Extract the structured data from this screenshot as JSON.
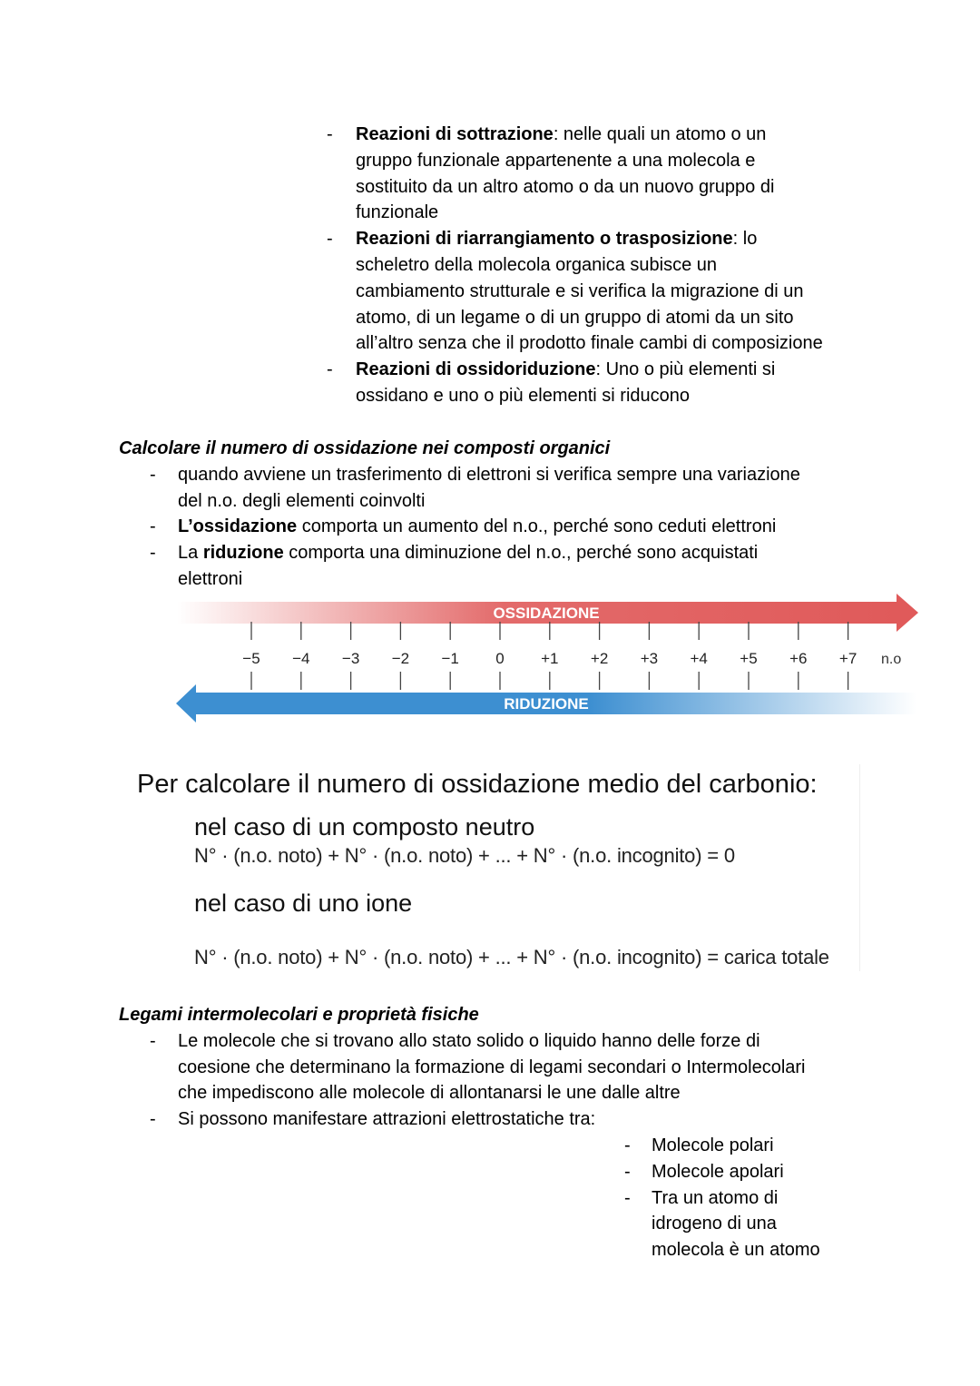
{
  "section1": {
    "items": [
      {
        "lines": [
          [
            [
              "Reazioni di sottrazione",
              1
            ],
            [
              ": nelle quali un atomo o un",
              0
            ]
          ],
          [
            [
              "gruppo funzionale appartenente a una molecola e",
              0
            ]
          ],
          [
            [
              "sostituito da un altro atomo o da un nuovo gruppo di",
              0
            ]
          ],
          [
            [
              "funzionale",
              0
            ]
          ]
        ]
      },
      {
        "lines": [
          [
            [
              "Reazioni di riarrangiamento o trasposizione",
              1
            ],
            [
              ": lo",
              0
            ]
          ],
          [
            [
              "scheletro della molecola organica subisce un",
              0
            ]
          ],
          [
            [
              "cambiamento strutturale e si verifica la migrazione di un",
              0
            ]
          ],
          [
            [
              "atomo, di un legame o di un gruppo di atomi da un sito",
              0
            ]
          ],
          [
            [
              "all’altro senza che il prodotto finale cambi di composizione",
              0
            ]
          ]
        ]
      },
      {
        "lines": [
          [
            [
              "Reazioni di ossidoriduzione",
              1
            ],
            [
              ": Uno o più elementi si",
              0
            ]
          ],
          [
            [
              "ossidano e uno o più elementi si riducono",
              0
            ]
          ]
        ]
      }
    ]
  },
  "section2": {
    "heading": "Calcolare il numero di ossidazione nei composti organici",
    "items": [
      {
        "lines": [
          [
            [
              "quando avviene un trasferimento di elettroni si verifica sempre una variazione",
              0
            ]
          ],
          [
            [
              "del n.o. degli elementi coinvolti",
              0
            ]
          ]
        ]
      },
      {
        "lines": [
          [
            [
              "L’ossidazione",
              1
            ],
            [
              " comporta un aumento del n.o., perché sono ceduti elettroni",
              0
            ]
          ]
        ]
      },
      {
        "lines": [
          [
            [
              "La ",
              0
            ],
            [
              "riduzione",
              1
            ],
            [
              " comporta una diminuzione del n.o., perché sono acquistati",
              0
            ]
          ],
          [
            [
              "elettroni",
              0
            ]
          ]
        ]
      }
    ]
  },
  "diagram": {
    "oxidation_label": "OSSIDAZIONE",
    "reduction_label": "RIDUZIONE",
    "ticks": [
      "−5",
      "−4",
      "−3",
      "−2",
      "−1",
      "0",
      "+1",
      "+2",
      "+3",
      "+4",
      "+5",
      "+6",
      "+7"
    ],
    "unit": "n.o",
    "colors": {
      "oxidation": "#e05a5a",
      "reduction": "#3d8fd1"
    }
  },
  "formulas": {
    "title": "Per calcolare il numero di ossidazione medio del carbonio:",
    "neutral_label": "nel caso di un composto neutro",
    "neutral_formula": "N° · (n.o. noto) + N° · (n.o. noto) + ... + N° · (n.o. incognito) = 0",
    "ion_label": "nel caso di uno ione",
    "ion_formula": "N° · (n.o. noto) + N° · (n.o. noto) + ... + N° · (n.o. incognito) = carica totale"
  },
  "section3": {
    "heading": "Legami intermolecolari e proprietà fisiche",
    "items": [
      {
        "lines": [
          [
            [
              "Le molecole che si trovano allo stato solido o liquido hanno delle forze di",
              0
            ]
          ],
          [
            [
              "coesione che determinano la formazione di legami secondari o Intermolecolari",
              0
            ]
          ],
          [
            [
              "che impediscono alle molecole di allontanarsi le une dalle altre",
              0
            ]
          ]
        ]
      },
      {
        "lines": [
          [
            [
              "Si possono manifestare attrazioni elettrostatiche tra:",
              0
            ]
          ]
        ]
      }
    ],
    "subitems": [
      {
        "lines": [
          [
            [
              "Molecole polari",
              0
            ]
          ]
        ]
      },
      {
        "lines": [
          [
            [
              "Molecole apolari",
              0
            ]
          ]
        ]
      },
      {
        "lines": [
          [
            [
              "Tra un atomo di",
              0
            ]
          ],
          [
            [
              "idrogeno di una",
              0
            ]
          ],
          [
            [
              "molecola è un atomo",
              0
            ]
          ]
        ]
      }
    ]
  }
}
